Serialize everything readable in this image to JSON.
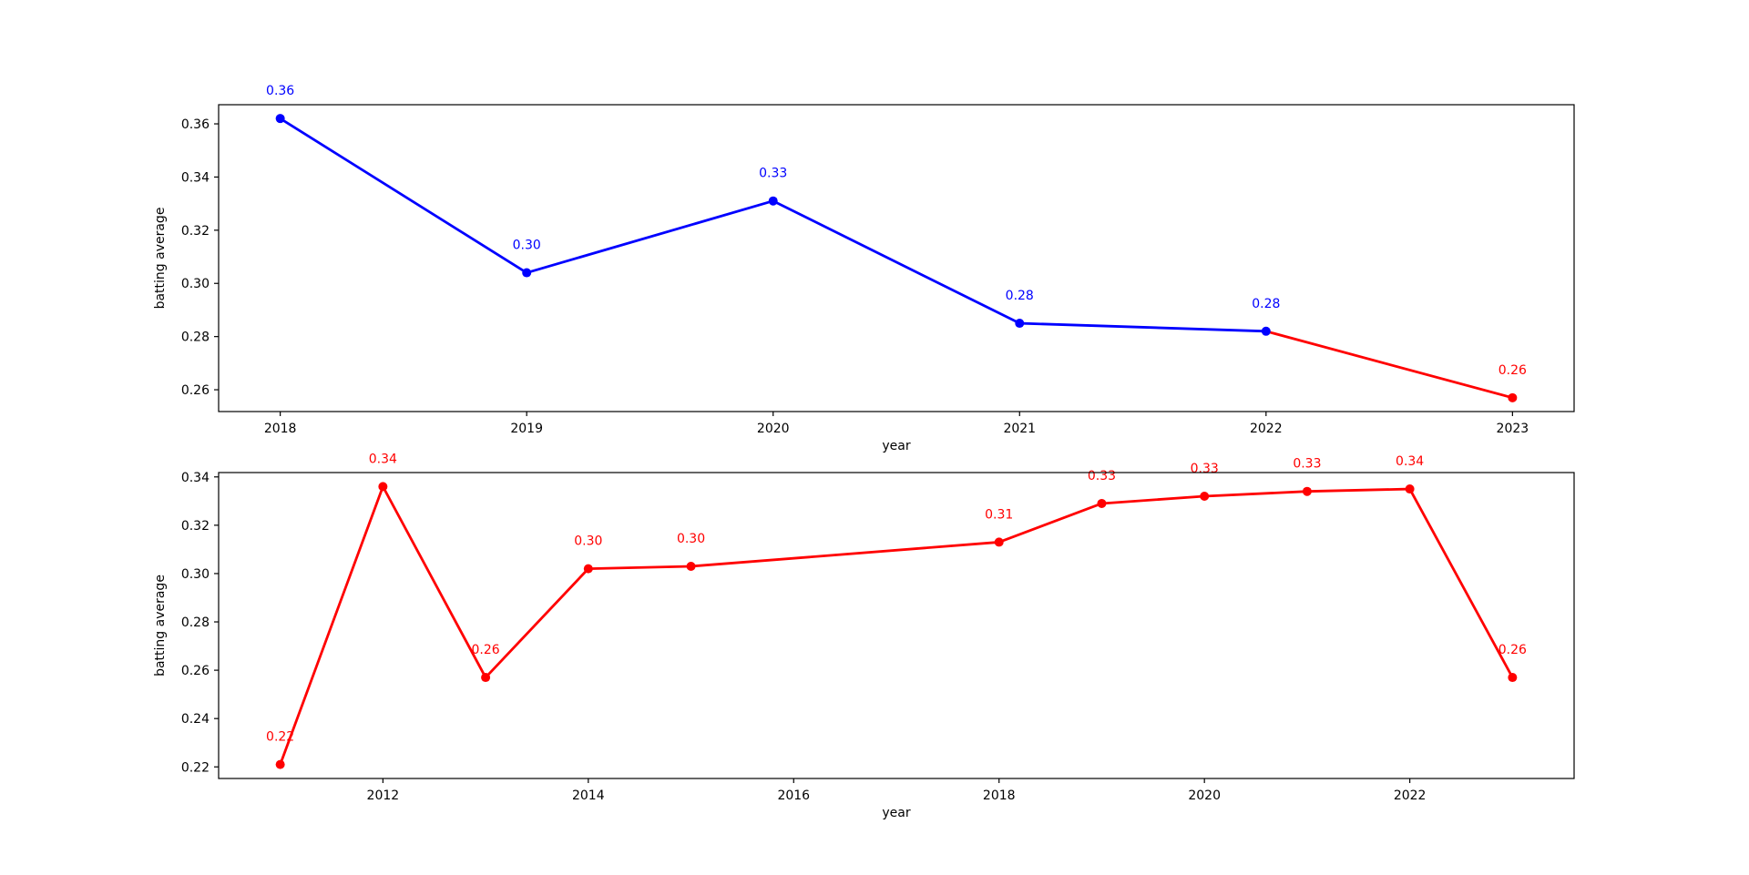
{
  "figure": {
    "background": "#ffffff",
    "text_color": "#000000"
  },
  "chart_data": [
    {
      "type": "line",
      "title": "",
      "xlabel": "year",
      "ylabel": "batting average",
      "xlim": [
        2017.75,
        2023.25
      ],
      "ylim": [
        0.2518,
        0.3672
      ],
      "xticks": [
        2018,
        2019,
        2020,
        2021,
        2022,
        2023
      ],
      "yticks": [
        0.26,
        0.28,
        0.3,
        0.32,
        0.34,
        0.36
      ],
      "grid": false,
      "legend": "none",
      "series": [
        {
          "name": "recent-red-segment",
          "color": "#ff0000",
          "x": [
            2022,
            2023
          ],
          "y": [
            0.282,
            0.257
          ],
          "markers": [
            false,
            true
          ],
          "labels": [
            null,
            "0.26"
          ]
        },
        {
          "name": "main-blue-series",
          "color": "#0000ff",
          "x": [
            2018,
            2019,
            2020,
            2021,
            2022
          ],
          "y": [
            0.362,
            0.304,
            0.331,
            0.285,
            0.282
          ],
          "markers": [
            true,
            true,
            true,
            true,
            true
          ],
          "labels": [
            "0.36",
            "0.30",
            "0.33",
            "0.28",
            "0.28"
          ]
        }
      ]
    },
    {
      "type": "line",
      "title": "",
      "xlabel": "year",
      "ylabel": "batting average",
      "xlim": [
        2010.4,
        2023.6
      ],
      "ylim": [
        0.2152,
        0.3418
      ],
      "xticks": [
        2012,
        2014,
        2016,
        2018,
        2020,
        2022
      ],
      "yticks": [
        0.22,
        0.24,
        0.26,
        0.28,
        0.3,
        0.32,
        0.34
      ],
      "grid": false,
      "legend": "none",
      "series": [
        {
          "name": "career-red-series",
          "color": "#ff0000",
          "x": [
            2011,
            2012,
            2013,
            2014,
            2015,
            2018,
            2019,
            2020,
            2021,
            2022,
            2023
          ],
          "y": [
            0.221,
            0.336,
            0.257,
            0.302,
            0.303,
            0.313,
            0.329,
            0.332,
            0.334,
            0.335,
            0.257
          ],
          "markers": [
            true,
            true,
            true,
            true,
            true,
            true,
            true,
            true,
            true,
            true,
            true
          ],
          "labels": [
            "0.22",
            "0.34",
            "0.26",
            "0.30",
            "0.30",
            "0.31",
            "0.33",
            "0.33",
            "0.33",
            "0.34",
            "0.26"
          ]
        }
      ]
    }
  ]
}
